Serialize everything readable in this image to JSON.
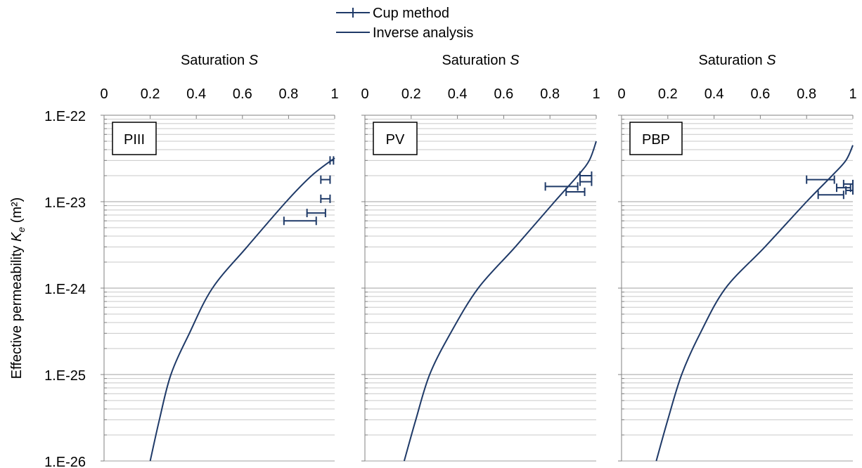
{
  "legend": {
    "items": [
      {
        "label": "Cup method",
        "marker": "plus-line"
      },
      {
        "label": "Inverse analysis",
        "marker": "line"
      }
    ],
    "position": "top-center"
  },
  "ylabel": "Effective permeability",
  "ylabel_symbol": "K",
  "ylabel_subscript": "e",
  "ylabel_unit": "(m²)",
  "colors": {
    "series": "#1f3a68",
    "grid": "#c8c8c8",
    "axis": "#808080"
  },
  "chart_data": [
    {
      "type": "scatter",
      "panel_label": "PIII",
      "xlabel": "Saturation",
      "xlabel_symbol": "S",
      "xlim": [
        0,
        1
      ],
      "x_ticks": [
        "0",
        "0.2",
        "0.4",
        "0.6",
        "0.8",
        "1"
      ],
      "ylim": [
        1e-26,
        1e-22
      ],
      "yscale": "log",
      "y_ticks": [
        "1.E-22",
        "1.E-23",
        "1.E-24",
        "1.E-25",
        "1.E-26"
      ],
      "grid": true,
      "series": [
        {
          "name": "Cup method",
          "points": [
            {
              "y": 3e-23,
              "x": [
                0.98,
                0.995
              ]
            },
            {
              "y": 1.8e-23,
              "x": [
                0.94,
                0.98
              ]
            },
            {
              "y": 1.08e-23,
              "x": [
                0.94,
                0.98
              ]
            },
            {
              "y": 7.4e-24,
              "x": [
                0.88,
                0.96
              ]
            },
            {
              "y": 6e-24,
              "x": [
                0.78,
                0.92
              ]
            }
          ]
        },
        {
          "name": "Inverse analysis",
          "points": [
            [
              0.2,
              1e-26
            ],
            [
              0.24,
              3e-26
            ],
            [
              0.29,
              1e-25
            ],
            [
              0.37,
              3e-25
            ],
            [
              0.47,
              1e-24
            ],
            [
              0.62,
              3e-24
            ],
            [
              0.79,
              1e-23
            ],
            [
              0.9,
              2e-23
            ],
            [
              1.0,
              3.2e-23
            ]
          ]
        }
      ]
    },
    {
      "type": "scatter",
      "panel_label": "PV",
      "xlabel": "Saturation",
      "xlabel_symbol": "S",
      "xlim": [
        0,
        1
      ],
      "x_ticks": [
        "0",
        "0.2",
        "0.4",
        "0.6",
        "0.8",
        "1"
      ],
      "ylim": [
        1e-26,
        1e-22
      ],
      "yscale": "log",
      "grid": true,
      "series": [
        {
          "name": "Cup method",
          "points": [
            {
              "y": 2e-23,
              "x": [
                0.93,
                0.98
              ]
            },
            {
              "y": 1.7e-23,
              "x": [
                0.93,
                0.98
              ]
            },
            {
              "y": 1.5e-23,
              "x": [
                0.78,
                0.92
              ]
            },
            {
              "y": 1.3e-23,
              "x": [
                0.87,
                0.95
              ]
            }
          ]
        },
        {
          "name": "Inverse analysis",
          "points": [
            [
              0.17,
              1e-26
            ],
            [
              0.22,
              3e-26
            ],
            [
              0.28,
              1e-25
            ],
            [
              0.37,
              3e-25
            ],
            [
              0.49,
              1e-24
            ],
            [
              0.65,
              3e-24
            ],
            [
              0.82,
              1e-23
            ],
            [
              0.92,
              2e-23
            ],
            [
              0.97,
              3e-23
            ],
            [
              1.0,
              5e-23
            ]
          ]
        }
      ]
    },
    {
      "type": "scatter",
      "panel_label": "PBP",
      "xlabel": "Saturation",
      "xlabel_symbol": "S",
      "xlim": [
        0,
        1
      ],
      "x_ticks": [
        "0",
        "0.2",
        "0.4",
        "0.6",
        "0.8",
        "1"
      ],
      "ylim": [
        1e-26,
        1e-22
      ],
      "yscale": "log",
      "grid": true,
      "series": [
        {
          "name": "Cup method",
          "points": [
            {
              "y": 1.8e-23,
              "x": [
                0.8,
                0.92
              ]
            },
            {
              "y": 1.6e-23,
              "x": [
                0.96,
                1.0
              ]
            },
            {
              "y": 1.45e-23,
              "x": [
                0.93,
                0.99
              ]
            },
            {
              "y": 1.35e-23,
              "x": [
                0.97,
                1.0
              ]
            },
            {
              "y": 1.2e-23,
              "x": [
                0.85,
                0.96
              ]
            }
          ]
        },
        {
          "name": "Inverse analysis",
          "points": [
            [
              0.15,
              1e-26
            ],
            [
              0.2,
              3e-26
            ],
            [
              0.26,
              1e-25
            ],
            [
              0.34,
              3e-25
            ],
            [
              0.45,
              1e-24
            ],
            [
              0.62,
              3e-24
            ],
            [
              0.8,
              1e-23
            ],
            [
              0.91,
              2e-23
            ],
            [
              0.97,
              3e-23
            ],
            [
              1.0,
              4.5e-23
            ]
          ]
        }
      ]
    }
  ]
}
